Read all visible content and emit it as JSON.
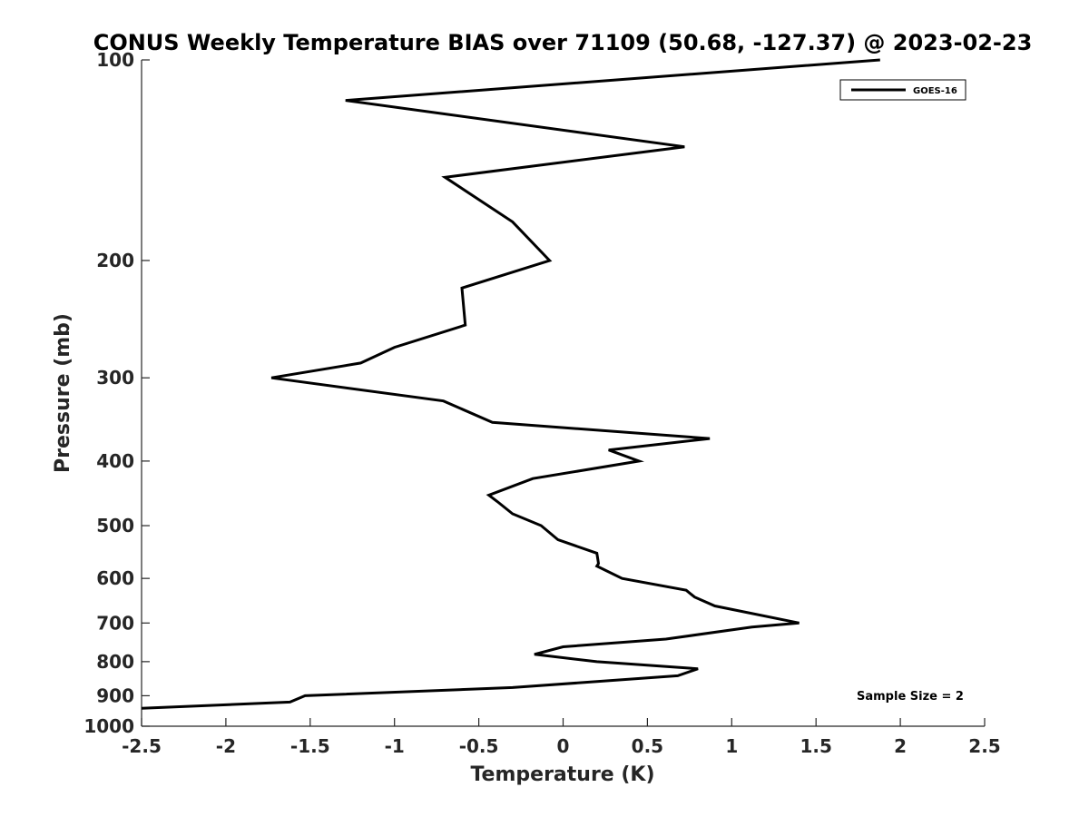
{
  "chart_data": {
    "type": "line",
    "title": "CONUS Weekly Temperature BIAS over 71109 (50.68, -127.37) @ 2023-02-23",
    "xlabel": "Temperature (K)",
    "ylabel": "Pressure (mb)",
    "xlim": [
      -2.5,
      2.5
    ],
    "ylim": [
      1000,
      100
    ],
    "y_scale": "log",
    "y_reversed": true,
    "x_ticks": [
      "-2.5",
      "-2",
      "-1.5",
      "-1",
      "-0.5",
      "0",
      "0.5",
      "1",
      "1.5",
      "2",
      "2.5"
    ],
    "y_ticks": [
      "100",
      "200",
      "300",
      "400",
      "500",
      "600",
      "700",
      "800",
      "900",
      "1000"
    ],
    "legend_position": "top-right",
    "grid": false,
    "annotation": "Sample Size = 2",
    "series": [
      {
        "name": "GOES-16",
        "color": "#000000",
        "points": [
          {
            "x": 1.88,
            "y": 100
          },
          {
            "x": -1.29,
            "y": 115
          },
          {
            "x": 0.72,
            "y": 135
          },
          {
            "x": -0.7,
            "y": 150
          },
          {
            "x": -0.3,
            "y": 175
          },
          {
            "x": -0.08,
            "y": 200
          },
          {
            "x": -0.6,
            "y": 220
          },
          {
            "x": -0.58,
            "y": 250
          },
          {
            "x": -1.0,
            "y": 270
          },
          {
            "x": -1.2,
            "y": 285
          },
          {
            "x": -1.73,
            "y": 300
          },
          {
            "x": -0.71,
            "y": 325
          },
          {
            "x": -0.42,
            "y": 350
          },
          {
            "x": 0.87,
            "y": 370
          },
          {
            "x": 0.27,
            "y": 385
          },
          {
            "x": 0.45,
            "y": 400
          },
          {
            "x": -0.18,
            "y": 425
          },
          {
            "x": -0.44,
            "y": 450
          },
          {
            "x": -0.39,
            "y": 460
          },
          {
            "x": -0.3,
            "y": 480
          },
          {
            "x": -0.13,
            "y": 500
          },
          {
            "x": -0.03,
            "y": 525
          },
          {
            "x": 0.2,
            "y": 550
          },
          {
            "x": 0.21,
            "y": 570
          },
          {
            "x": 0.2,
            "y": 575
          },
          {
            "x": 0.35,
            "y": 600
          },
          {
            "x": 0.73,
            "y": 625
          },
          {
            "x": 0.78,
            "y": 640
          },
          {
            "x": 0.9,
            "y": 660
          },
          {
            "x": 1.4,
            "y": 700
          },
          {
            "x": 1.12,
            "y": 710
          },
          {
            "x": 0.61,
            "y": 740
          },
          {
            "x": 0.0,
            "y": 760
          },
          {
            "x": -0.17,
            "y": 780
          },
          {
            "x": 0.2,
            "y": 800
          },
          {
            "x": 0.8,
            "y": 820
          },
          {
            "x": 0.68,
            "y": 840
          },
          {
            "x": -0.3,
            "y": 875
          },
          {
            "x": -1.53,
            "y": 900
          },
          {
            "x": -1.62,
            "y": 920
          },
          {
            "x": -2.5,
            "y": 940
          }
        ]
      }
    ]
  }
}
